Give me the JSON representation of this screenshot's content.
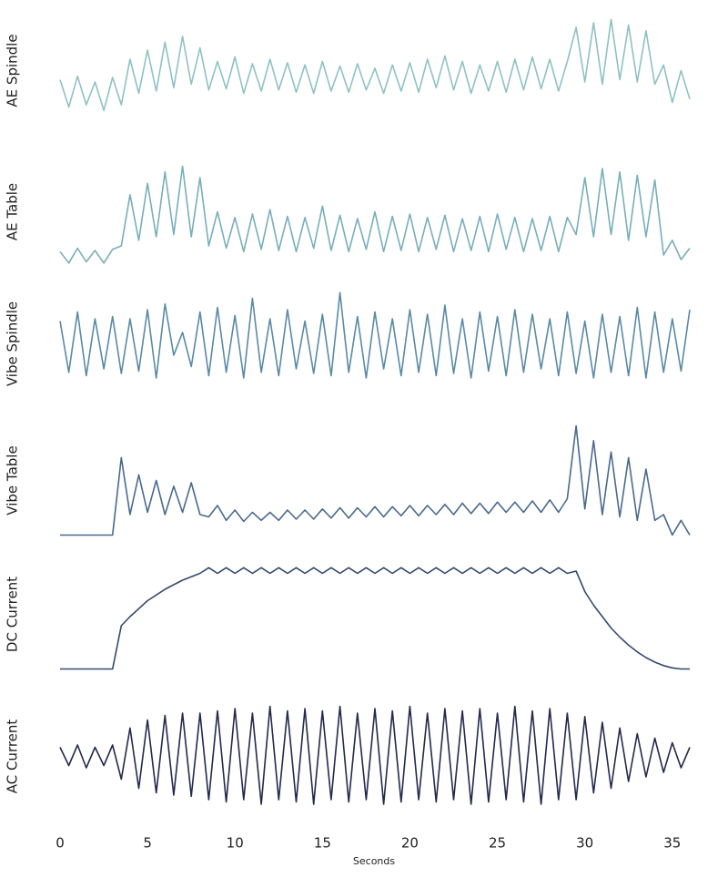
{
  "chart_data": {
    "type": "line",
    "xlabel": "Seconds",
    "xlim": [
      0,
      36
    ],
    "xticks": [
      0,
      5,
      10,
      15,
      20,
      25,
      30,
      35
    ],
    "x": [
      0,
      0.5,
      1,
      1.5,
      2,
      2.5,
      3,
      3.5,
      4,
      4.5,
      5,
      5.5,
      6,
      6.5,
      7,
      7.5,
      8,
      8.5,
      9,
      9.5,
      10,
      10.5,
      11,
      11.5,
      12,
      12.5,
      13,
      13.5,
      14,
      14.5,
      15,
      15.5,
      16,
      16.5,
      17,
      17.5,
      18,
      18.5,
      19,
      19.5,
      20,
      20.5,
      21,
      21.5,
      22,
      22.5,
      23,
      23.5,
      24,
      24.5,
      25,
      25.5,
      26,
      26.5,
      27,
      27.5,
      28,
      28.5,
      29,
      29.5,
      30,
      30.5,
      31,
      31.5,
      32,
      32.5,
      33,
      33.5,
      34,
      34.5,
      35,
      35.5,
      36
    ],
    "panels": [
      {
        "ylabel": "AE Spindle",
        "color": "#8fc1c4",
        "ylim": [
          0,
          100
        ],
        "values": [
          42,
          18,
          45,
          20,
          40,
          15,
          44,
          20,
          60,
          30,
          68,
          32,
          75,
          35,
          80,
          38,
          70,
          33,
          58,
          34,
          62,
          30,
          56,
          32,
          60,
          33,
          57,
          31,
          55,
          30,
          58,
          32,
          54,
          31,
          56,
          33,
          52,
          30,
          55,
          32,
          57,
          31,
          60,
          35,
          63,
          33,
          58,
          30,
          55,
          32,
          58,
          31,
          60,
          33,
          62,
          34,
          60,
          32,
          58,
          88,
          40,
          92,
          38,
          95,
          42,
          90,
          40,
          85,
          38,
          55,
          22,
          50,
          25
        ]
      },
      {
        "ylabel": "AE Table",
        "color": "#78aebb",
        "ylim": [
          0,
          100
        ],
        "values": [
          15,
          5,
          18,
          6,
          16,
          5,
          17,
          20,
          65,
          25,
          75,
          28,
          85,
          30,
          90,
          28,
          80,
          20,
          50,
          18,
          45,
          15,
          48,
          17,
          52,
          16,
          46,
          15,
          45,
          18,
          55,
          16,
          47,
          15,
          44,
          17,
          50,
          15,
          46,
          16,
          48,
          15,
          45,
          17,
          47,
          15,
          44,
          16,
          46,
          15,
          48,
          17,
          45,
          15,
          44,
          16,
          46,
          15,
          45,
          30,
          80,
          28,
          88,
          30,
          85,
          25,
          82,
          28,
          78,
          12,
          25,
          8,
          18
        ]
      },
      {
        "ylabel": "Vibe Spindle",
        "color": "#5a8aa5",
        "ylim": [
          0,
          100
        ],
        "values": [
          70,
          25,
          78,
          22,
          72,
          28,
          74,
          24,
          72,
          26,
          80,
          20,
          85,
          40,
          60,
          30,
          78,
          22,
          82,
          25,
          75,
          20,
          90,
          25,
          72,
          22,
          80,
          28,
          70,
          24,
          76,
          22,
          95,
          25,
          74,
          20,
          78,
          28,
          72,
          22,
          80,
          25,
          76,
          22,
          84,
          24,
          72,
          20,
          78,
          26,
          74,
          22,
          80,
          25,
          76,
          28,
          72,
          22,
          78,
          24,
          70,
          20,
          76,
          25,
          74,
          22,
          82,
          20,
          78,
          25,
          72,
          26,
          80
        ]
      },
      {
        "ylabel": "Vibe Table",
        "color": "#4a6a8e",
        "ylim": [
          0,
          100
        ],
        "values": [
          2,
          2,
          2,
          2,
          2,
          2,
          2,
          70,
          20,
          55,
          22,
          50,
          20,
          45,
          22,
          48,
          20,
          18,
          28,
          15,
          24,
          14,
          22,
          15,
          22,
          15,
          24,
          16,
          24,
          16,
          25,
          17,
          26,
          17,
          26,
          18,
          27,
          18,
          27,
          19,
          28,
          19,
          28,
          20,
          29,
          20,
          30,
          21,
          30,
          21,
          31,
          22,
          31,
          22,
          32,
          22,
          33,
          22,
          34,
          98,
          25,
          85,
          20,
          75,
          18,
          70,
          15,
          60,
          15,
          20,
          2,
          15,
          2
        ]
      },
      {
        "ylabel": "DC Current",
        "color": "#34496e",
        "ylim": [
          0,
          100
        ],
        "values": [
          2,
          2,
          2,
          2,
          2,
          2,
          2,
          40,
          48,
          55,
          62,
          67,
          72,
          76,
          80,
          83,
          86,
          91,
          86,
          91,
          86,
          91,
          86,
          91,
          86,
          91,
          86,
          91,
          86,
          91,
          86,
          91,
          86,
          91,
          86,
          91,
          86,
          91,
          86,
          91,
          86,
          91,
          86,
          91,
          86,
          91,
          86,
          91,
          86,
          91,
          86,
          91,
          86,
          91,
          86,
          91,
          86,
          91,
          86,
          88,
          70,
          58,
          48,
          38,
          30,
          23,
          17,
          12,
          8,
          5,
          3,
          2,
          2
        ]
      },
      {
        "ylabel": "AC Current",
        "color": "#232a4d",
        "ylim": [
          0,
          100
        ],
        "values": [
          58,
          42,
          60,
          40,
          58,
          42,
          60,
          30,
          75,
          22,
          82,
          18,
          86,
          16,
          88,
          15,
          88,
          12,
          90,
          10,
          92,
          12,
          88,
          8,
          94,
          12,
          90,
          10,
          92,
          8,
          90,
          12,
          94,
          10,
          88,
          12,
          92,
          8,
          90,
          10,
          94,
          12,
          88,
          10,
          92,
          12,
          90,
          8,
          92,
          10,
          88,
          12,
          94,
          10,
          90,
          8,
          92,
          12,
          88,
          12,
          85,
          18,
          80,
          22,
          75,
          28,
          70,
          32,
          66,
          36,
          62,
          40,
          58
        ]
      }
    ]
  }
}
